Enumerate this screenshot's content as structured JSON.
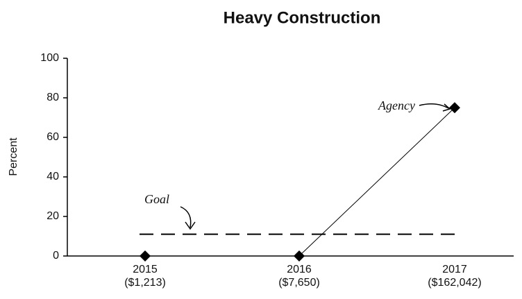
{
  "chart_data": {
    "type": "line",
    "title": "Heavy Construction",
    "y_label": "Percent",
    "categories": [
      "2015",
      "2016",
      "2017"
    ],
    "category_totals": [
      "($1,213)",
      "($7,650)",
      "($162,042)"
    ],
    "series": [
      {
        "name": "Agency",
        "color": "#000000",
        "values": [
          0,
          0,
          75
        ]
      },
      {
        "name": "Goal",
        "color": "#000000",
        "dashed": true,
        "values": [
          11,
          11,
          11
        ]
      }
    ],
    "ylim": [
      0,
      100
    ],
    "yticks": [
      0,
      20,
      40,
      60,
      80,
      100
    ]
  }
}
